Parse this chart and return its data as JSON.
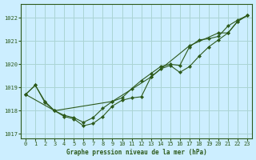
{
  "title": "Graphe pression niveau de la mer (hPa)",
  "background_color": "#cceeff",
  "grid_color": "#aad4d4",
  "line_color": "#2d5a1b",
  "marker_color": "#2d5a1b",
  "xlim": [
    -0.5,
    23.5
  ],
  "ylim": [
    1016.8,
    1022.6
  ],
  "yticks": [
    1017,
    1018,
    1019,
    1020,
    1021,
    1022
  ],
  "xticks": [
    0,
    1,
    2,
    3,
    4,
    5,
    6,
    7,
    8,
    9,
    10,
    11,
    12,
    13,
    14,
    15,
    16,
    17,
    18,
    19,
    20,
    21,
    22,
    23
  ],
  "series1": {
    "x": [
      0,
      1,
      2,
      3,
      4,
      5,
      6,
      7,
      8,
      9,
      10,
      11,
      12,
      13,
      14,
      15,
      16,
      17,
      18,
      19,
      20,
      21,
      22,
      23
    ],
    "y": [
      1018.7,
      1019.1,
      1018.4,
      1018.0,
      1017.75,
      1017.65,
      1017.35,
      1017.45,
      1017.75,
      1018.2,
      1018.45,
      1018.55,
      1018.6,
      1019.45,
      1019.8,
      1019.95,
      1019.65,
      1019.9,
      1020.35,
      1020.75,
      1021.05,
      1021.35,
      1021.85,
      1022.1
    ]
  },
  "series2": {
    "x": [
      0,
      1,
      2,
      3,
      4,
      5,
      6,
      7,
      8,
      9,
      10,
      11,
      12,
      13,
      14,
      15,
      16,
      17,
      18,
      19,
      20,
      21,
      22,
      23
    ],
    "y": [
      1018.7,
      1019.1,
      1018.35,
      1018.0,
      1017.8,
      1017.7,
      1017.5,
      1017.7,
      1018.1,
      1018.4,
      1018.55,
      1018.95,
      1019.3,
      1019.6,
      1019.9,
      1020.0,
      1019.95,
      1020.75,
      1021.05,
      1021.1,
      1021.2,
      1021.65,
      1021.9,
      1022.1
    ]
  },
  "series3": {
    "x": [
      0,
      3,
      9,
      13,
      17,
      20,
      21,
      22,
      23
    ],
    "y": [
      1018.7,
      1018.0,
      1018.4,
      1019.45,
      1020.8,
      1021.35,
      1021.35,
      1021.85,
      1022.1
    ]
  }
}
